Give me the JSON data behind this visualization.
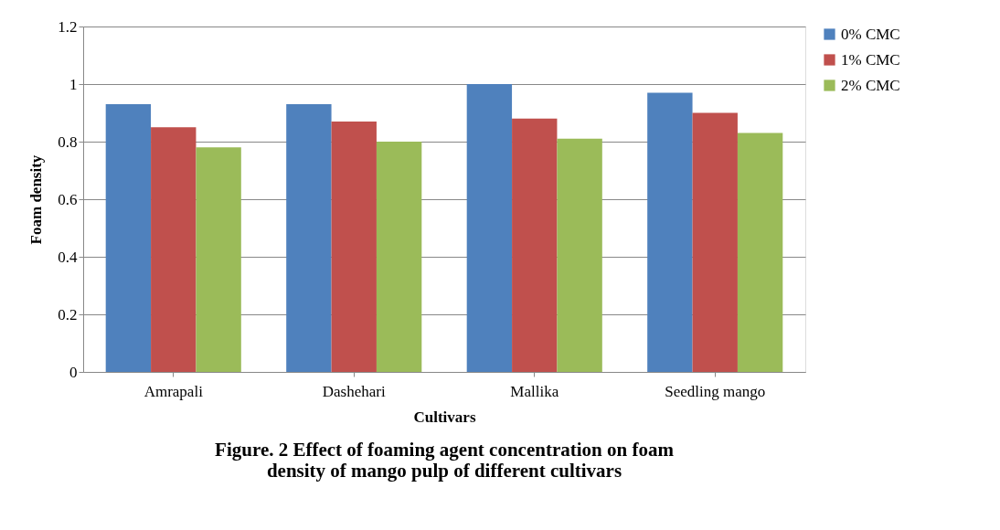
{
  "chart_data": {
    "type": "bar",
    "title": "Figure. 2 Effect of foaming agent concentration on foam density of mango pulp of different cultivars",
    "xlabel": "Cultivars",
    "ylabel": "Foam density",
    "categories": [
      "Amrapali",
      "Dashehari",
      "Mallika",
      "Seedling mango"
    ],
    "series": [
      {
        "name": "0% CMC",
        "color": "#4f81bd",
        "values": [
          0.93,
          0.93,
          1.0,
          0.97
        ]
      },
      {
        "name": "1% CMC",
        "color": "#c0504d",
        "values": [
          0.85,
          0.87,
          0.88,
          0.9
        ]
      },
      {
        "name": "2% CMC",
        "color": "#9bbb59",
        "values": [
          0.78,
          0.8,
          0.81,
          0.83
        ]
      }
    ],
    "ylim": [
      0,
      1.2
    ],
    "yticks": [
      0,
      {
        "value": 0.2,
        "label": "0.2"
      },
      {
        "value": 0.4,
        "label": "0.4"
      },
      {
        "value": 0.6,
        "label": "0.6"
      },
      {
        "value": 0.8,
        "label": "0.8"
      },
      1,
      {
        "value": 1.2,
        "label": "1.2"
      }
    ],
    "grid": "y",
    "legend": "right"
  }
}
